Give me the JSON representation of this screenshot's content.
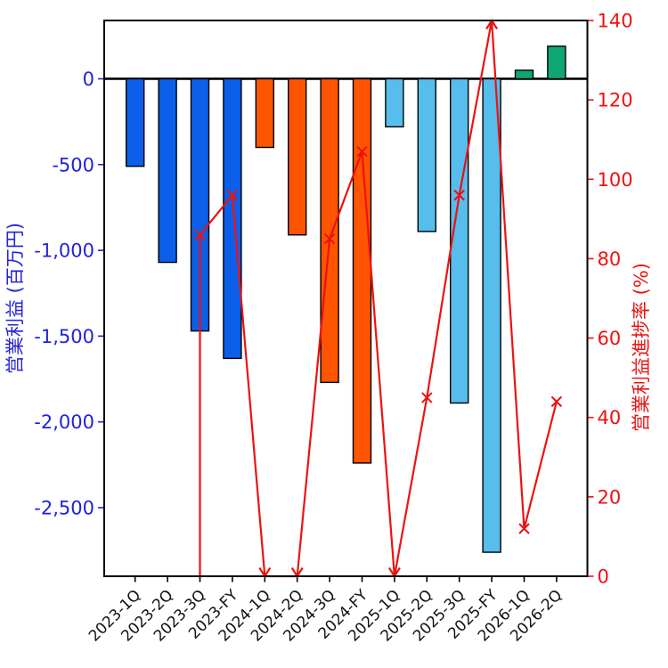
{
  "chart_data": {
    "type": "bar+line dual-axis combo",
    "categories": [
      "2023-1Q",
      "2023-2Q",
      "2023-3Q",
      "2023-FY",
      "2024-1Q",
      "2024-2Q",
      "2024-3Q",
      "2024-FY",
      "2025-1Q",
      "2025-2Q",
      "2025-3Q",
      "2025-FY",
      "2026-1Q",
      "2026-2Q"
    ],
    "series": [
      {
        "name": "営業利益",
        "type": "bar",
        "axis": "left",
        "values": [
          -510,
          -1070,
          -1470,
          -1630,
          -400,
          -910,
          -1770,
          -2240,
          -280,
          -890,
          -1890,
          -2760,
          50,
          190
        ],
        "bar_colors_by_year": {
          "2023": "#0B5FE8",
          "2024": "#FF5500",
          "2025": "#56BDEC",
          "2026": "#10A674"
        },
        "bar_edge_color": "#000000"
      },
      {
        "name": "営業利益進捗率",
        "type": "line",
        "axis": "right",
        "marker": "x",
        "color": "#EE1111",
        "values": [
          null,
          null,
          86,
          96,
          0,
          0,
          85,
          107,
          0,
          45,
          96,
          140,
          12,
          44
        ],
        "clipped_below_indices": [
          4,
          5,
          8
        ],
        "clipped_above_indices": [
          11
        ],
        "vertical_entry_index": 2
      }
    ],
    "left_axis": {
      "title": "営業利益 (百万円)",
      "color": "#2222DD",
      "ticks": [
        0,
        -500,
        -1000,
        -1500,
        -2000,
        -2500
      ],
      "tick_labels": [
        "0",
        "-500",
        "-1,000",
        "-1,500",
        "-2,000",
        "-2,500"
      ],
      "range": [
        -2900,
        340
      ]
    },
    "right_axis": {
      "title": "営業利益進捗率 (%)",
      "color": "#EE1111",
      "ticks": [
        0,
        20,
        40,
        60,
        80,
        100,
        120,
        140
      ],
      "tick_labels": [
        "0",
        "20",
        "40",
        "60",
        "80",
        "100",
        "120",
        "140"
      ],
      "range": [
        0,
        140
      ]
    },
    "x_axis": {
      "tick_label_color": "#111111",
      "tick_label_rotation_deg": -45
    },
    "grid": false,
    "legend": false,
    "background": "#FFFFFF",
    "zero_line_color": "#000000"
  }
}
